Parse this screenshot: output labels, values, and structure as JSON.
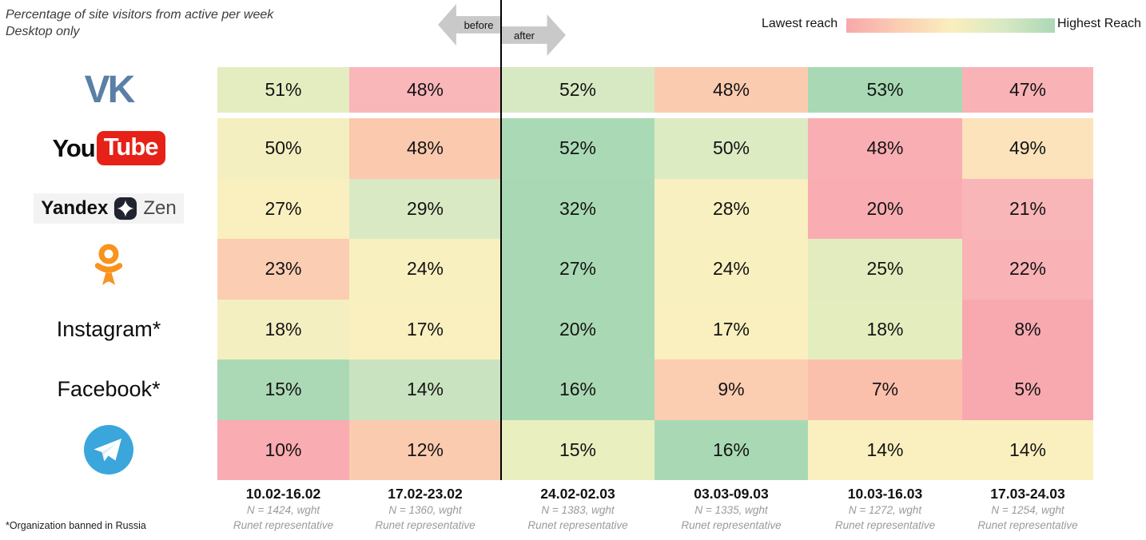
{
  "header": {
    "title_line1": "Percentage of site visitors from active per week",
    "title_line2": "Desktop only",
    "before_label": "before",
    "after_label": "after",
    "legend_low": "Lawest reach",
    "legend_high": "Highest Reach"
  },
  "footnote": "*Organization banned in Russia",
  "row_labels": [
    {
      "type": "logo",
      "name": "vk",
      "text": "VK"
    },
    {
      "type": "logo",
      "name": "youtube",
      "text_black": "You",
      "text_badge": "Tube"
    },
    {
      "type": "logo",
      "name": "yandex-zen",
      "text_left": "Yandex",
      "text_right": "Zen"
    },
    {
      "type": "logo",
      "name": "ok"
    },
    {
      "type": "text",
      "name": "instagram",
      "text": "Instagram*"
    },
    {
      "type": "text",
      "name": "facebook",
      "text": "Facebook*"
    },
    {
      "type": "logo",
      "name": "telegram"
    }
  ],
  "columns": [
    {
      "dates": "10.02-16.02",
      "sample": "N = 1424, wght",
      "rep": "Runet representative"
    },
    {
      "dates": "17.02-23.02",
      "sample": "N = 1360, wght",
      "rep": "Runet representative"
    },
    {
      "dates": "24.02-02.03",
      "sample": "N = 1383, wght",
      "rep": "Runet representative"
    },
    {
      "dates": "03.03-09.03",
      "sample": "N = 1335, wght",
      "rep": "Runet representative"
    },
    {
      "dates": "10.03-16.03",
      "sample": "N = 1272, wght",
      "rep": "Runet representative"
    },
    {
      "dates": "17.03-24.03",
      "sample": "N = 1254, wght",
      "rep": "Runet representative"
    }
  ],
  "chart_data": {
    "type": "heatmap",
    "title": "Percentage of site visitors from active per week",
    "subtitle": "Desktop only",
    "unit": "%",
    "columns": [
      "10.02-16.02",
      "17.02-23.02",
      "24.02-02.03",
      "03.03-09.03",
      "10.03-16.03",
      "17.03-24.03"
    ],
    "rows": [
      "VK",
      "YouTube",
      "Yandex Zen",
      "Odnoklassniki",
      "Instagram*",
      "Facebook*",
      "Telegram"
    ],
    "values": [
      [
        51,
        48,
        52,
        48,
        53,
        47
      ],
      [
        50,
        48,
        52,
        50,
        48,
        49
      ],
      [
        27,
        29,
        32,
        28,
        20,
        21
      ],
      [
        23,
        24,
        27,
        24,
        25,
        22
      ],
      [
        18,
        17,
        20,
        17,
        18,
        8
      ],
      [
        15,
        14,
        16,
        9,
        7,
        5
      ],
      [
        10,
        12,
        15,
        16,
        14,
        14
      ]
    ],
    "legend": {
      "low": "Lawest reach",
      "high": "Highest Reach",
      "position": "top-right"
    },
    "color_low": "#f8a9b0",
    "color_mid": "#faf0bf",
    "color_high": "#a9d9b4"
  },
  "cell_colors": [
    [
      "#e4edc0",
      "#f9b7b9",
      "#d7e9c2",
      "#fbcbb0",
      "#a9d9b4",
      "#f9b2b6"
    ],
    [
      "#f4efc0",
      "#fbc9ae",
      "#aadab5",
      "#dcebc2",
      "#f9aeb3",
      "#fce3bc"
    ],
    [
      "#faf0bf",
      "#d9e9c3",
      "#a9d9b4",
      "#f8f0c0",
      "#f9adb2",
      "#f9b6b8"
    ],
    [
      "#fbcdb2",
      "#f9f0bf",
      "#a9d9b4",
      "#f9f0bf",
      "#e3ecbe",
      "#f9b2b6"
    ],
    [
      "#f4efc0",
      "#faf0bf",
      "#a9d9b4",
      "#f9efbf",
      "#e4edbe",
      "#f8a9b0"
    ],
    [
      "#abd9b5",
      "#c9e3c0",
      "#a9d9b4",
      "#fbcdb1",
      "#fbc0ac",
      "#f8a9b0"
    ],
    [
      "#f9acb1",
      "#fbcbb0",
      "#e9efbf",
      "#a9d9b4",
      "#faf0bf",
      "#faf0bf"
    ]
  ],
  "colors": {
    "divider_line": "#000000",
    "arrow_gray": "#c9c9c9",
    "vk_blue": "#5b7fa6",
    "youtube_red": "#e62117",
    "zen_dark": "#20242e",
    "ok_orange": "#f7931e",
    "telegram_blue": "#3ba6db"
  }
}
